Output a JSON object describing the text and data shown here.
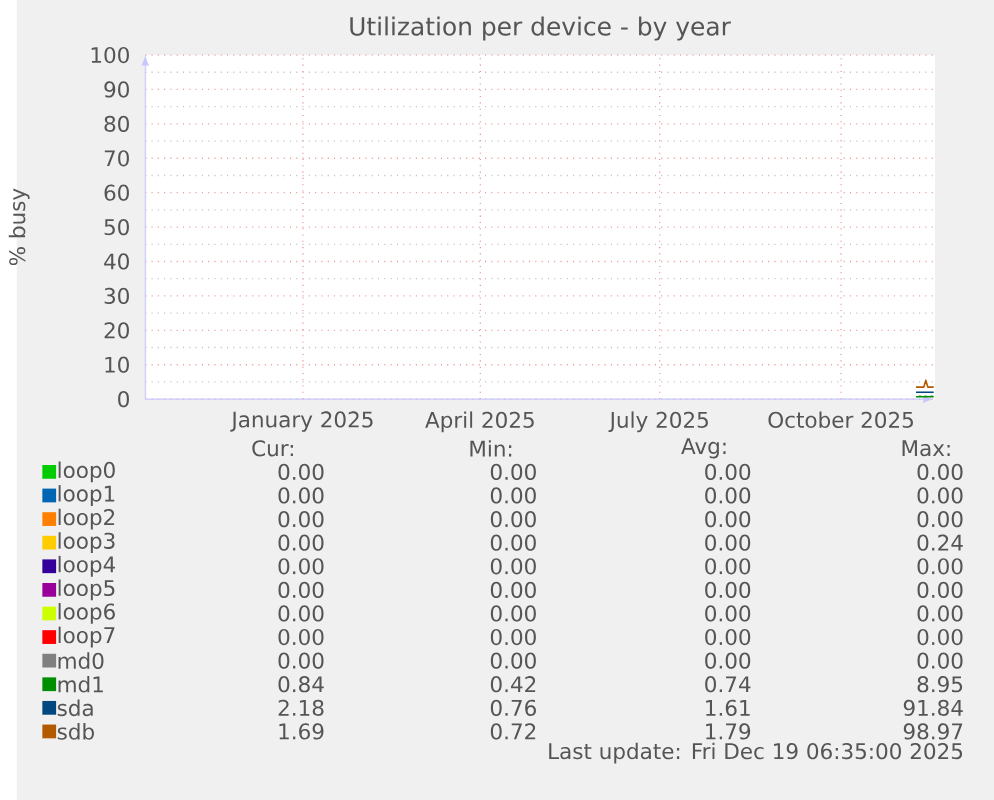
{
  "chart_data": {
    "type": "line",
    "title": "Utilization per device - by year",
    "ylabel": "% busy",
    "x": [
      "2025-11-08",
      "2025-11-09",
      "2025-11-10",
      "2025-11-11",
      "2025-11-12",
      "2025-11-13",
      "2025-11-14",
      "2025-11-15",
      "2025-11-16",
      "2025-11-17"
    ],
    "xlim": [
      "2024-10-13",
      "2025-11-17"
    ],
    "xticks": [
      {
        "value": "2025-01-01",
        "label": "January 2025"
      },
      {
        "value": "2025-04-01",
        "label": "April 2025"
      },
      {
        "value": "2025-07-01",
        "label": "July 2025"
      },
      {
        "value": "2025-10-01",
        "label": "October 2025"
      }
    ],
    "ylim": [
      0,
      100
    ],
    "yticks": [
      0,
      10,
      20,
      30,
      40,
      50,
      60,
      70,
      80,
      90,
      100
    ],
    "grid": true,
    "legend": "bottom",
    "marker": "none",
    "line_style": "solid",
    "series": [
      {
        "name": "loop0",
        "color": "#00cc00",
        "values": [
          null,
          null,
          null,
          null,
          null,
          null,
          null,
          null,
          null,
          null
        ]
      },
      {
        "name": "loop1",
        "color": "#0066b3",
        "values": [
          null,
          null,
          null,
          null,
          null,
          null,
          null,
          null,
          null,
          null
        ]
      },
      {
        "name": "loop2",
        "color": "#ff8000",
        "values": [
          null,
          null,
          null,
          null,
          null,
          null,
          null,
          null,
          null,
          null
        ]
      },
      {
        "name": "loop3",
        "color": "#ffcc00",
        "values": [
          null,
          null,
          null,
          null,
          null,
          null,
          null,
          null,
          null,
          null
        ]
      },
      {
        "name": "loop4",
        "color": "#330099",
        "values": [
          null,
          null,
          null,
          null,
          null,
          null,
          null,
          null,
          null,
          null
        ]
      },
      {
        "name": "loop5",
        "color": "#990099",
        "values": [
          null,
          null,
          null,
          null,
          null,
          null,
          null,
          null,
          null,
          null
        ]
      },
      {
        "name": "loop6",
        "color": "#ccff00",
        "values": [
          null,
          null,
          null,
          null,
          null,
          null,
          null,
          null,
          null,
          null
        ]
      },
      {
        "name": "loop7",
        "color": "#ff0000",
        "values": [
          null,
          null,
          null,
          null,
          null,
          null,
          null,
          null,
          null,
          null
        ]
      },
      {
        "name": "md0",
        "color": "#808080",
        "values": [
          null,
          null,
          null,
          null,
          null,
          null,
          null,
          null,
          null,
          null
        ]
      },
      {
        "name": "md1",
        "color": "#008f00",
        "values": [
          0.7,
          0.7,
          0.8,
          0.7,
          0.7,
          0.8,
          0.7,
          0.7,
          0.8,
          0.7
        ]
      },
      {
        "name": "sda",
        "color": "#00487d",
        "values": [
          2,
          2,
          2,
          2,
          2,
          2,
          2,
          2,
          2,
          2
        ]
      },
      {
        "name": "sdb",
        "color": "#b35a00",
        "values": [
          3.5,
          3.5,
          3.5,
          3.5,
          3.5,
          5.5,
          3.5,
          3.5,
          3.5,
          3.5
        ]
      }
    ],
    "annotations": [
      "Cur:",
      "Min:",
      "Avg:",
      "Max:",
      "0.00",
      "0.00",
      "0.00",
      "0.00",
      "0.00",
      "0.00",
      "0.00",
      "0.00",
      "0.00",
      "0.00",
      "0.00",
      "0.00",
      "0.00",
      "0.00",
      "0.00",
      "0.24",
      "0.00",
      "0.00",
      "0.00",
      "0.00",
      "0.00",
      "0.00",
      "0.00",
      "0.00",
      "0.00",
      "0.00",
      "0.00",
      "0.00",
      "0.00",
      "0.00",
      "0.00",
      "0.00",
      "0.00",
      "0.00",
      "0.00",
      "0.00",
      "0.84",
      "0.42",
      "0.74",
      "8.95",
      "2.18",
      "0.76",
      "1.61",
      "91.84",
      "1.69",
      "0.72",
      "1.79",
      "98.97",
      "Last update: Fri Dec 19 06:35:00 2025"
    ]
  }
}
